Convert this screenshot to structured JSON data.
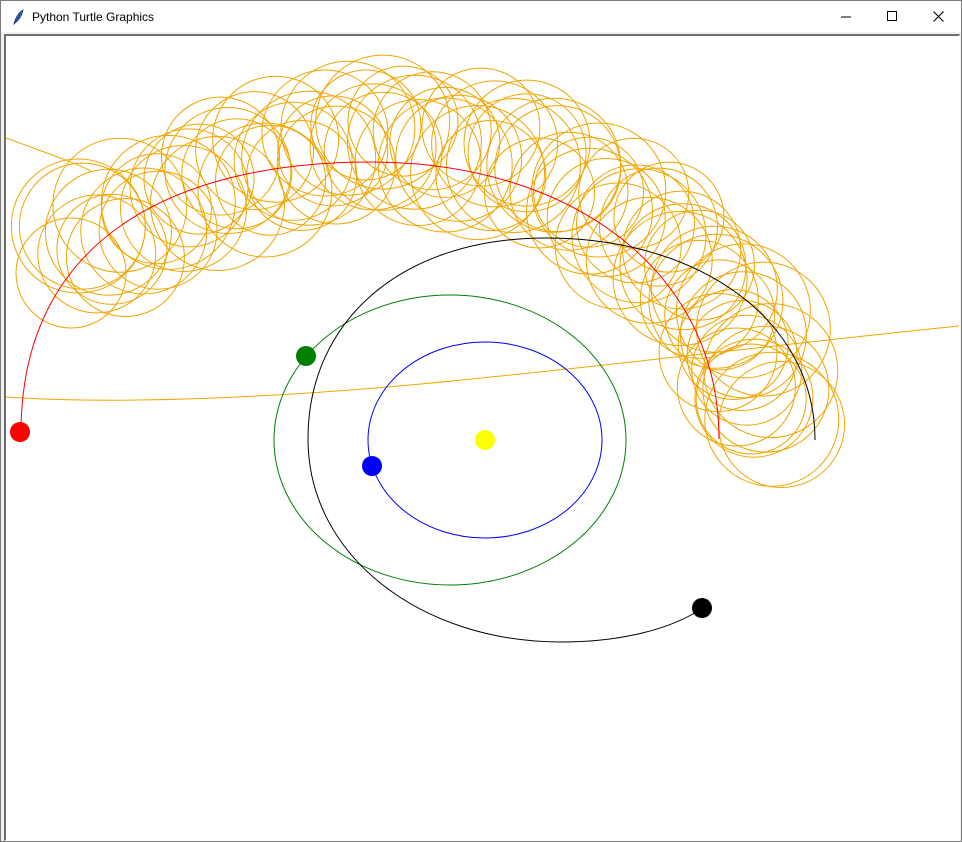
{
  "window": {
    "title": "Python Turtle Graphics",
    "controls": {
      "minimize": "—",
      "maximize": "☐",
      "close": "✕"
    }
  },
  "scene": {
    "colors": {
      "background": "#ffffff",
      "sun": "#ffff00",
      "planet_blue": "#0000ff",
      "planet_green": "#008000",
      "planet_red": "#ff0000",
      "planet_black": "#000000",
      "trail_orange": "#f0a500"
    },
    "bodies": [
      "sun",
      "blue-planet",
      "green-planet",
      "red-planet",
      "black-planet"
    ],
    "trails": [
      "blue-orbit-trail",
      "green-orbit-trail",
      "red-orbit-trail",
      "black-orbit-trail",
      "orange-loop-trail"
    ]
  }
}
